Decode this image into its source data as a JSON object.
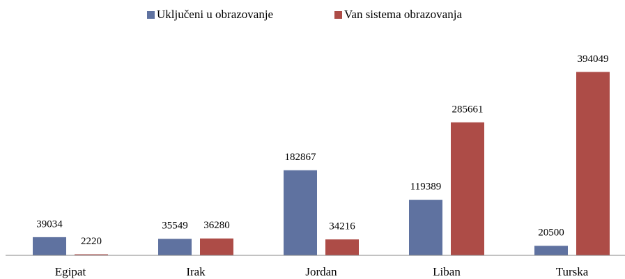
{
  "chart_data": {
    "type": "bar",
    "categories": [
      "Egipat",
      "Irak",
      "Jordan",
      "Liban",
      "Turska"
    ],
    "series": [
      {
        "name": "Uključeni u obrazovanje",
        "color": "#5f72a0",
        "values": [
          39034,
          35549,
          182867,
          119389,
          20500
        ]
      },
      {
        "name": "Van sistema obrazovanja",
        "color": "#ad4c47",
        "values": [
          2220,
          36280,
          34216,
          285661,
          394049
        ]
      }
    ],
    "ylim": [
      0,
      420000
    ],
    "legend": "top"
  }
}
